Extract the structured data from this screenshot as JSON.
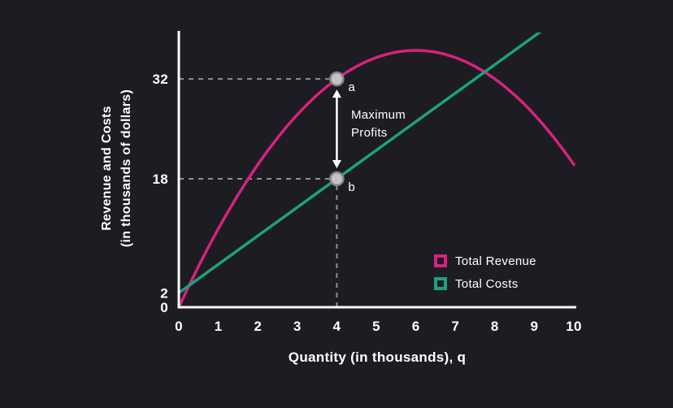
{
  "colors": {
    "background": "#1d1c22",
    "axis": "#ffffff",
    "text": "#ffffff",
    "revenue": "#d6227f",
    "costs": "#1ba27d",
    "guide": "#8f8f93",
    "point_fill": "#c3c3c3",
    "point_stroke": "#858585"
  },
  "chart_data": {
    "type": "line",
    "title": "",
    "xlabel": "Quantity (in thousands), q",
    "ylabel_line1": "Revenue and Costs",
    "ylabel_line2": "(in thousands of dollars)",
    "xlim": [
      0,
      10
    ],
    "ylim": [
      0,
      38.5
    ],
    "x_ticks": [
      0,
      1,
      2,
      3,
      4,
      5,
      6,
      7,
      8,
      9,
      10
    ],
    "y_ticks": [
      0,
      2,
      18,
      32
    ],
    "grid": false,
    "legend_position": "inside-lower-right",
    "series": [
      {
        "name": "Total Revenue",
        "color": "#d6227f",
        "x": [
          0,
          0.25,
          0.5,
          0.75,
          1,
          1.25,
          1.5,
          1.75,
          2,
          2.25,
          2.5,
          2.75,
          3,
          3.25,
          3.5,
          3.75,
          4,
          4.25,
          4.5,
          4.75,
          5,
          5.25,
          5.5,
          5.75,
          6,
          6.25,
          6.5,
          6.75,
          7,
          7.25,
          7.5,
          7.75,
          8,
          8.25,
          8.5,
          8.75,
          9,
          9.25,
          9.5,
          9.75,
          10
        ],
        "values": [
          0,
          2.94,
          5.75,
          8.44,
          11,
          13.44,
          15.75,
          17.94,
          20,
          21.94,
          23.75,
          25.44,
          27,
          28.44,
          29.75,
          30.94,
          32,
          32.94,
          33.75,
          34.44,
          35,
          35.44,
          35.75,
          35.94,
          36,
          35.94,
          35.75,
          35.44,
          35,
          34.44,
          33.75,
          32.94,
          32,
          30.94,
          29.75,
          28.44,
          27,
          25.44,
          23.75,
          21.94,
          20
        ]
      },
      {
        "name": "Total Costs",
        "color": "#1ba27d",
        "x": [
          0,
          10
        ],
        "values": [
          2,
          42
        ]
      }
    ],
    "points": [
      {
        "label": "a",
        "x": 4,
        "y": 32
      },
      {
        "label": "b",
        "x": 4,
        "y": 18
      }
    ],
    "guides": [
      {
        "type": "h",
        "y": 32,
        "x1": 0,
        "x2": 4
      },
      {
        "type": "h",
        "y": 18,
        "x1": 0,
        "x2": 4
      },
      {
        "type": "v",
        "x": 4,
        "y1": 0,
        "y2": 18
      }
    ],
    "profit_annotation": {
      "line1": "Maximum",
      "line2": "Profits",
      "x": 4,
      "y1": 18,
      "y2": 32
    },
    "legend": [
      {
        "label": "Total Revenue",
        "color": "#d6227f"
      },
      {
        "label": "Total Costs",
        "color": "#1ba27d"
      }
    ]
  }
}
